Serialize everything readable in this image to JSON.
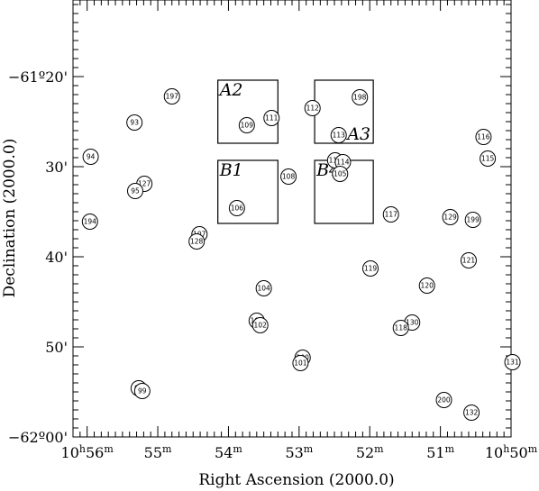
{
  "chart_data": {
    "type": "scatter",
    "xlabel": "Right Ascension (2000.0)",
    "ylabel": "Declination (2000.0)",
    "x_unit": "minutes of RA (10h + m)",
    "y_unit": "arcminutes below -61°00'",
    "xlim": [
      56.2,
      50.0
    ],
    "ylim": [
      60.0,
      11.5
    ],
    "x_direction": "reversed",
    "y_direction": "reversed",
    "x_ticks": [
      {
        "value": 56,
        "label_main": "10",
        "label_sup1": "h",
        "label_num": "56",
        "label_sup2": "m"
      },
      {
        "value": 55,
        "label_main": "55",
        "label_sup1": "m"
      },
      {
        "value": 54,
        "label_main": "54",
        "label_sup1": "m"
      },
      {
        "value": 53,
        "label_main": "53",
        "label_sup1": "m"
      },
      {
        "value": 52,
        "label_main": "52",
        "label_sup1": "m"
      },
      {
        "value": 51,
        "label_main": "51",
        "label_sup1": "m"
      },
      {
        "value": 50,
        "label_main": "10",
        "label_sup1": "h",
        "label_num": "50",
        "label_sup2": "m"
      }
    ],
    "y_ticks": [
      {
        "value": 20,
        "label": "−61º20'"
      },
      {
        "value": 30,
        "label": "30'"
      },
      {
        "value": 40,
        "label": "40'"
      },
      {
        "value": 50,
        "label": "50'"
      },
      {
        "value": 60,
        "label": "−62º00'"
      }
    ],
    "grid": false,
    "legend": "none",
    "fields": [
      {
        "name": "A2",
        "ra": [
          54.15,
          53.3
        ],
        "dec": [
          20.4,
          27.4
        ]
      },
      {
        "name": "A3",
        "ra": [
          52.78,
          51.95
        ],
        "dec": [
          20.4,
          27.4
        ]
      },
      {
        "name": "B1",
        "ra": [
          54.15,
          53.3
        ],
        "dec": [
          29.3,
          36.3
        ]
      },
      {
        "name": "B4",
        "ra": [
          52.78,
          51.95
        ],
        "dec": [
          29.3,
          36.3
        ]
      }
    ],
    "points": [
      {
        "id": "197",
        "ra": 54.8,
        "dec": 22.2
      },
      {
        "id": "93",
        "ra": 55.33,
        "dec": 25.1
      },
      {
        "id": "94",
        "ra": 55.95,
        "dec": 28.9
      },
      {
        "id": "127",
        "ra": 55.19,
        "dec": 31.9
      },
      {
        "id": "95",
        "ra": 55.32,
        "dec": 32.7
      },
      {
        "id": "194",
        "ra": 55.96,
        "dec": 36.1
      },
      {
        "id": "107",
        "ra": 54.41,
        "dec": 37.5
      },
      {
        "id": "128",
        "ra": 54.45,
        "dec": 38.3
      },
      {
        "id": "109",
        "ra": 53.74,
        "dec": 25.4
      },
      {
        "id": "111",
        "ra": 53.39,
        "dec": 24.6
      },
      {
        "id": "108",
        "ra": 53.15,
        "dec": 31.1
      },
      {
        "id": "106",
        "ra": 53.88,
        "dec": 34.6
      },
      {
        "id": "104",
        "ra": 53.5,
        "dec": 43.5
      },
      {
        "id": "103",
        "ra": 53.6,
        "dec": 47.1
      },
      {
        "id": "102",
        "ra": 53.55,
        "dec": 47.6
      },
      {
        "id": "100",
        "ra": 52.95,
        "dec": 51.2
      },
      {
        "id": "101",
        "ra": 52.98,
        "dec": 51.8
      },
      {
        "id": "97",
        "ra": 55.27,
        "dec": 54.6
      },
      {
        "id": "99",
        "ra": 55.22,
        "dec": 54.9
      },
      {
        "id": "112",
        "ra": 52.81,
        "dec": 23.5
      },
      {
        "id": "198",
        "ra": 52.14,
        "dec": 22.3
      },
      {
        "id": "113",
        "ra": 52.44,
        "dec": 26.5
      },
      {
        "id": "110",
        "ra": 52.49,
        "dec": 29.3
      },
      {
        "id": "114",
        "ra": 52.38,
        "dec": 29.5
      },
      {
        "id": "105",
        "ra": 52.42,
        "dec": 30.8
      },
      {
        "id": "117",
        "ra": 51.7,
        "dec": 35.3
      },
      {
        "id": "119",
        "ra": 51.99,
        "dec": 41.3
      },
      {
        "id": "120",
        "ra": 51.19,
        "dec": 43.2
      },
      {
        "id": "130",
        "ra": 51.4,
        "dec": 47.3
      },
      {
        "id": "118",
        "ra": 51.56,
        "dec": 47.9
      },
      {
        "id": "129",
        "ra": 50.86,
        "dec": 35.6
      },
      {
        "id": "199",
        "ra": 50.54,
        "dec": 35.9
      },
      {
        "id": "121",
        "ra": 50.6,
        "dec": 40.4
      },
      {
        "id": "116",
        "ra": 50.39,
        "dec": 26.7
      },
      {
        "id": "115",
        "ra": 50.33,
        "dec": 29.1
      },
      {
        "id": "131",
        "ra": 49.98,
        "dec": 51.7
      },
      {
        "id": "200",
        "ra": 50.95,
        "dec": 55.9
      },
      {
        "id": "132",
        "ra": 50.56,
        "dec": 57.3
      }
    ]
  }
}
